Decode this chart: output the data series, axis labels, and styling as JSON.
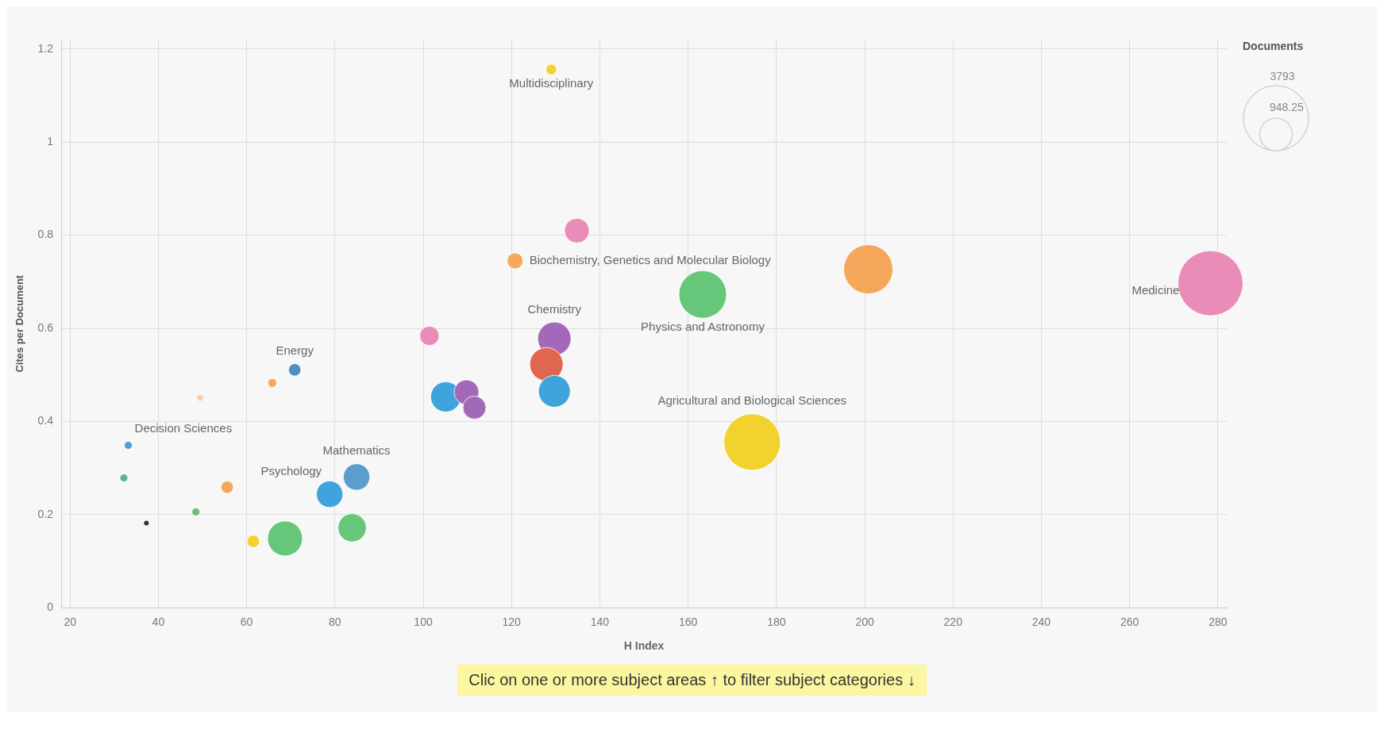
{
  "chart_data": {
    "type": "bubble",
    "xlabel": "H Index",
    "ylabel": "Cites per Document",
    "legend_title": "Documents",
    "size_legend": [
      948.25,
      3793
    ],
    "x": [
      129,
      134.8,
      120.8,
      200.8,
      163.3,
      278.3,
      129.7,
      127.9,
      129.7,
      174.5,
      101.4,
      105.1,
      109.8,
      111.6,
      70.9,
      65.8,
      49.5,
      33.2,
      32.2,
      48.5,
      37.3,
      55.6,
      61.5,
      68.7,
      78.8,
      84.9,
      83.9
    ],
    "values": [
      1.156,
      0.81,
      0.745,
      0.727,
      0.673,
      0.697,
      0.578,
      0.523,
      0.465,
      0.356,
      0.584,
      0.453,
      0.463,
      0.43,
      0.511,
      0.483,
      0.451,
      0.349,
      0.279,
      0.206,
      0.182,
      0.259,
      0.143,
      0.149,
      0.244,
      0.281,
      0.172
    ],
    "sizes": [
      101,
      549,
      226,
      2168,
      2030,
      3793,
      995,
      995,
      903,
      2860,
      336,
      815,
      549,
      475,
      137,
      71,
      44,
      56,
      56,
      56,
      20,
      137,
      137,
      1092,
      629,
      629,
      715
    ],
    "colors": [
      "#f2d22e",
      "#ea8cb8",
      "#f5a85c",
      "#f5a85c",
      "#66c77a",
      "#ea8cb8",
      "#a468b8",
      "#e0664e",
      "#3fa3dc",
      "#f2d22e",
      "#ea8cb8",
      "#3fa3dc",
      "#a468b8",
      "#a468b8",
      "#4f8fbf",
      "#f5a85c",
      "#f8d0a8",
      "#4f9fcf",
      "#5fb09a",
      "#6cbd7a",
      "#333333",
      "#f5a85c",
      "#f2d22e",
      "#66c77a",
      "#3fa3dc",
      "#5b9dcc",
      "#66c77a"
    ],
    "xlim": [
      18,
      282
    ],
    "ylim": [
      0,
      1.22
    ],
    "xticks": [
      20,
      40,
      60,
      80,
      100,
      120,
      140,
      160,
      180,
      200,
      220,
      240,
      260,
      280
    ],
    "yticks": [
      0,
      0.2,
      0.4,
      0.6,
      0.8,
      1,
      1.2
    ],
    "grid": true,
    "annotations": [
      {
        "text": "Multidisciplinary",
        "x": 129,
        "y": 1.156
      },
      {
        "text": "Biochemistry, Genetics and Molecular Biology",
        "x": 120.8,
        "y": 0.745
      },
      {
        "text": "Chemistry",
        "x": 129.7,
        "y": 0.578
      },
      {
        "text": "Physics and Astronomy",
        "x": 163.3,
        "y": 0.673
      },
      {
        "text": "Medicine",
        "x": 278.3,
        "y": 0.697
      },
      {
        "text": "Energy",
        "x": 70.9,
        "y": 0.511
      },
      {
        "text": "Agricultural and Biological Sciences",
        "x": 174.5,
        "y": 0.356
      },
      {
        "text": "Decision Sciences",
        "x": 33.2,
        "y": 0.349
      },
      {
        "text": "Mathematics",
        "x": 84.9,
        "y": 0.281
      },
      {
        "text": "Psychology",
        "x": 78.8,
        "y": 0.244
      },
      "Clic on one or more subject areas ↑ to filter subject categories ↓"
    ]
  }
}
